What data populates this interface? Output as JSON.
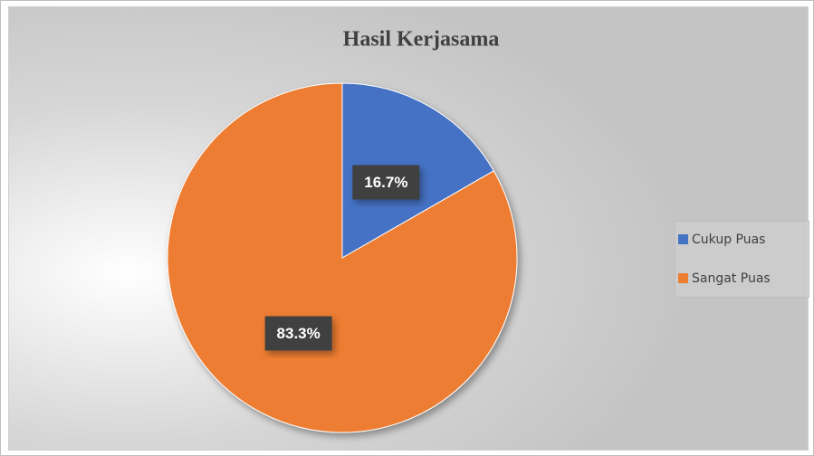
{
  "chart_data": {
    "type": "pie",
    "title": "Hasil Kerjasama",
    "categories": [
      "Cukup Puas",
      "Sangat Puas"
    ],
    "values": [
      16.7,
      83.3
    ],
    "value_labels": [
      "16.7%",
      "83.3%"
    ],
    "colors": [
      "#4472c4",
      "#ed7d31"
    ],
    "legend": "right"
  }
}
